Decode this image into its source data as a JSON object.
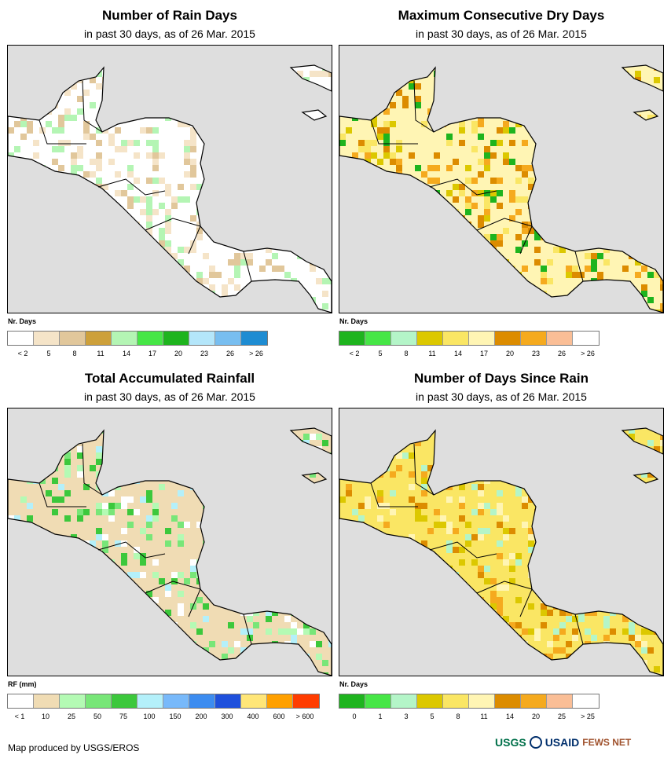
{
  "panels": [
    {
      "title": "Number of Rain Days",
      "subtitle": "in past 30 days, as of 26 Mar. 2015",
      "legend_title": "Nr. Days",
      "legend_colors": [
        "#ffffff",
        "#f5e4c8",
        "#e1c79b",
        "#cda03a",
        "#b4f5b4",
        "#46e646",
        "#1eb41e",
        "#b4e6fa",
        "#78bef0",
        "#1e8cd2"
      ],
      "ticks": [
        "< 2",
        "5",
        "8",
        "11",
        "14",
        "17",
        "20",
        "23",
        "26",
        "> 26"
      ]
    },
    {
      "title": "Maximum Consecutive Dry Days",
      "subtitle": "in past 30 days, as of 26 Mar. 2015",
      "legend_title": "Nr. Days",
      "legend_colors": [
        "#1eb41e",
        "#46e646",
        "#b4f5c8",
        "#dcc800",
        "#fae664",
        "#fff5b4",
        "#dc8c00",
        "#f5aa1e",
        "#fabe96",
        "#ffffff"
      ],
      "ticks": [
        "< 2",
        "5",
        "8",
        "11",
        "14",
        "17",
        "20",
        "23",
        "26",
        "> 26"
      ]
    },
    {
      "title": "Total Accumulated Rainfall",
      "subtitle": "in past 30 days, as of 26 Mar. 2015",
      "legend_title": "RF (mm)",
      "legend_colors": [
        "#ffffff",
        "#f0dcb4",
        "#b4fab4",
        "#78e678",
        "#3cc83c",
        "#b4f0fa",
        "#78b9fa",
        "#3c8cf0",
        "#1e50dc",
        "#ffe678",
        "#ffa000",
        "#ff3c00"
      ],
      "ticks": [
        "< 1",
        "10",
        "25",
        "50",
        "75",
        "100",
        "150",
        "200",
        "300",
        "400",
        "600",
        "> 600"
      ]
    },
    {
      "title": "Number of Days Since Rain",
      "subtitle": "in past 30 days, as of 26 Mar. 2015",
      "legend_title": "Nr. Days",
      "legend_colors": [
        "#1eb41e",
        "#46e646",
        "#b4f5c8",
        "#dcc800",
        "#fae664",
        "#fff5b4",
        "#dc8c00",
        "#f5aa1e",
        "#fabe96",
        "#ffffff"
      ],
      "ticks": [
        "0",
        "1",
        "3",
        "5",
        "8",
        "11",
        "14",
        "20",
        "25",
        "> 25"
      ]
    }
  ],
  "footer": "Map produced by USGS/EROS",
  "logos": {
    "usgs": "USGS",
    "usaid": "USAID",
    "fewsnet": "FEWS NET"
  },
  "colors": {
    "ocean": "#dedede",
    "border": "#000000"
  }
}
